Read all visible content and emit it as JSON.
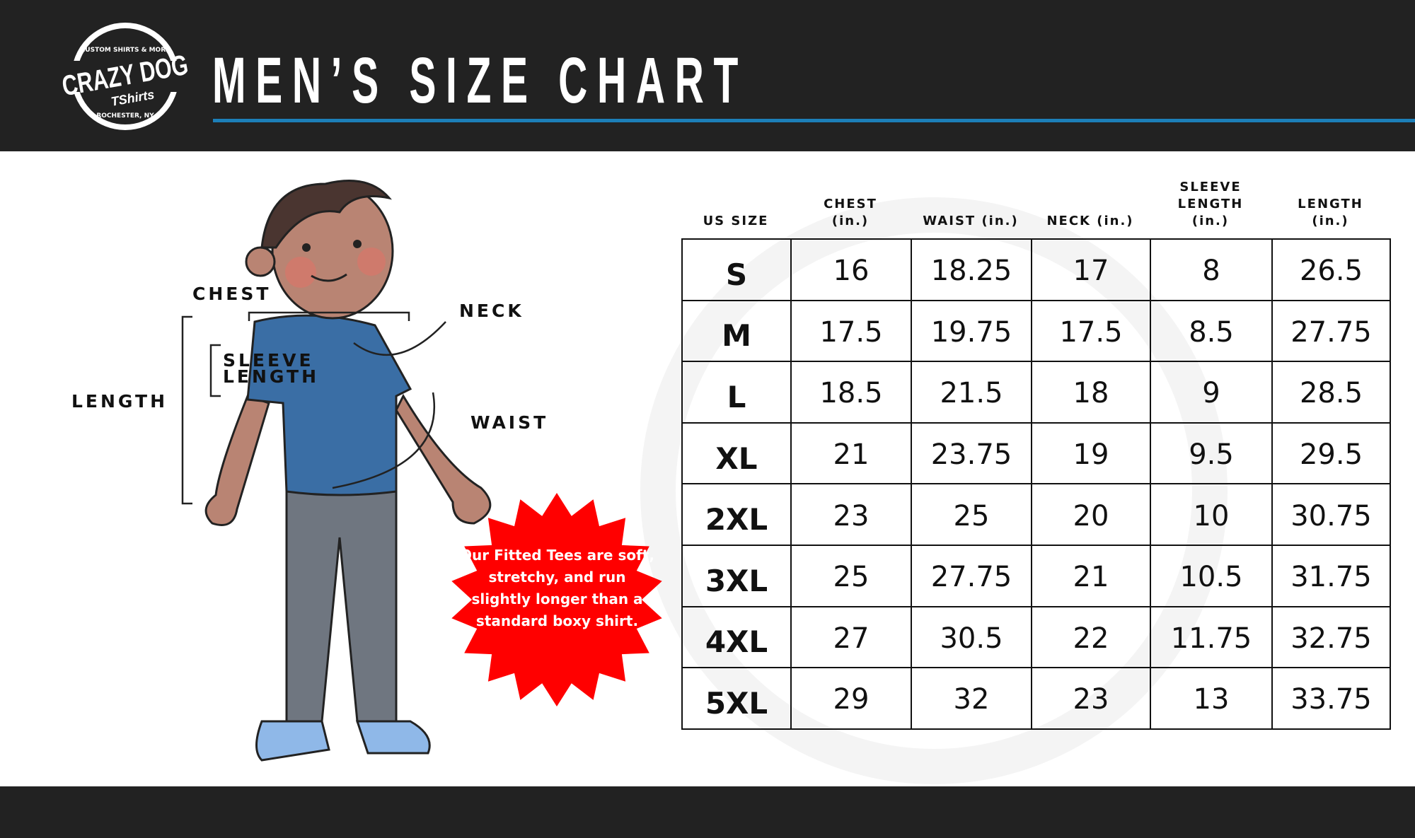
{
  "header": {
    "title": "MEN’S SIZE CHART",
    "logo": {
      "brand": "CRAZY DOG",
      "sub": "TShirts",
      "ring_top": "CUSTOM SHIRTS & MORE",
      "ring_bottom": "ROCHESTER, NY"
    }
  },
  "diagram": {
    "chest": "CHEST",
    "neck": "NECK",
    "sleeve": "SLEEVE",
    "sleeve2": "LENGTH",
    "length": "LENGTH",
    "waist": "WAIST"
  },
  "callout": {
    "text": "Our Fitted Tees are soft, stretchy, and run slightly longer than a standard boxy shirt.",
    "color": "#ff0000"
  },
  "colors": {
    "header_bg": "#222222",
    "accent": "#1c7fb8"
  },
  "chart_data": {
    "type": "table",
    "columns": [
      "US SIZE",
      "CHEST (in.)",
      "WAIST (in.)",
      "NECK (in.)",
      "SLEEVE LENGTH (in.)",
      "LENGTH (in.)"
    ],
    "rows": [
      [
        "S",
        "16",
        "18.25",
        "17",
        "8",
        "26.5"
      ],
      [
        "M",
        "17.5",
        "19.75",
        "17.5",
        "8.5",
        "27.75"
      ],
      [
        "L",
        "18.5",
        "21.5",
        "18",
        "9",
        "28.5"
      ],
      [
        "XL",
        "21",
        "23.75",
        "19",
        "9.5",
        "29.5"
      ],
      [
        "2XL",
        "23",
        "25",
        "20",
        "10",
        "30.75"
      ],
      [
        "3XL",
        "25",
        "27.75",
        "21",
        "10.5",
        "31.75"
      ],
      [
        "4XL",
        "27",
        "30.5",
        "22",
        "11.75",
        "32.75"
      ],
      [
        "5XL",
        "29",
        "32",
        "23",
        "13",
        "33.75"
      ]
    ]
  }
}
